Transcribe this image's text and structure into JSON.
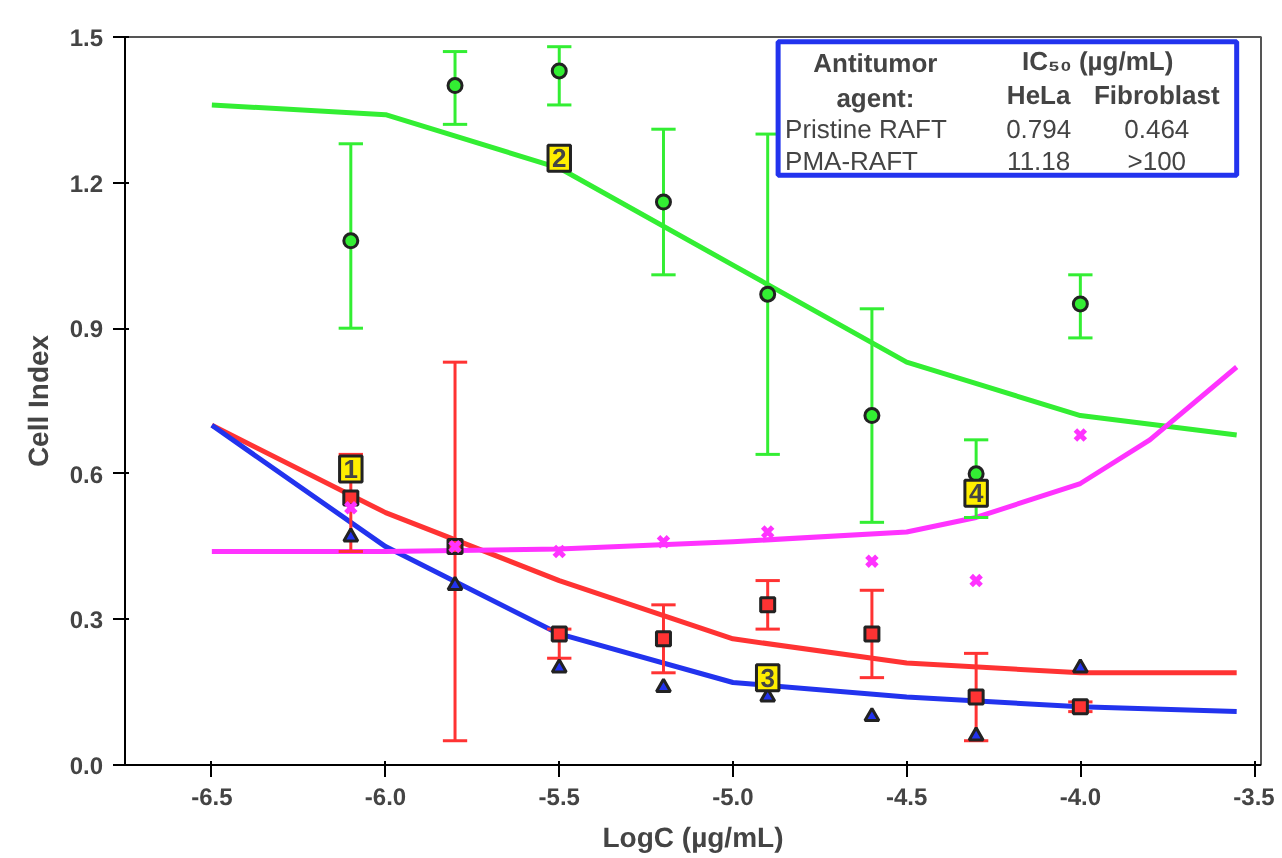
{
  "chart_data": {
    "type": "scatter",
    "xlabel": "LogC (µg/mL)",
    "ylabel": "Cell Index",
    "xlim": [
      -6.75,
      -3.48
    ],
    "ylim": [
      0,
      1.5
    ],
    "xticks": [
      {
        "value": -6.5,
        "label": "-6.5"
      },
      {
        "value": -6,
        "label": "-6.0"
      },
      {
        "value": -5.5,
        "label": "-5.5"
      },
      {
        "value": -5,
        "label": "-5.0"
      },
      {
        "value": -4.5,
        "label": "-4.5"
      },
      {
        "value": -4,
        "label": "-4.0"
      },
      {
        "value": -3.5,
        "label": "-3.5"
      }
    ],
    "yticks": [
      {
        "value": 0,
        "label": "0.0"
      },
      {
        "value": 0.3,
        "label": "0.3"
      },
      {
        "value": 0.6,
        "label": "0.6"
      },
      {
        "value": 0.9,
        "label": "0.9"
      },
      {
        "value": 1.2,
        "label": "1.2"
      },
      {
        "value": 1.5,
        "label": "1.5"
      }
    ],
    "x": [
      -6.1,
      -5.8,
      -5.5,
      -5.2,
      -4.9,
      -4.6,
      -4.3,
      -4.0
    ],
    "series": [
      {
        "type": "line",
        "color": "#33ee33",
        "x": [
          -6.5,
          -6.0,
          -5.5,
          -5.0,
          -4.5,
          -4.0,
          -3.55
        ],
        "values": [
          1.36,
          1.34,
          1.23,
          1.03,
          0.83,
          0.72,
          0.68
        ]
      },
      {
        "type": "line",
        "color": "#ff3333",
        "x": [
          -6.5,
          -6.0,
          -5.5,
          -5.0,
          -4.5,
          -4.0,
          -3.55
        ],
        "values": [
          0.7,
          0.52,
          0.38,
          0.26,
          0.21,
          0.19,
          0.19
        ]
      },
      {
        "type": "line",
        "color": "#2233ee",
        "x": [
          -6.5,
          -6.0,
          -5.5,
          -5.0,
          -4.5,
          -4.0,
          -3.55
        ],
        "values": [
          0.7,
          0.45,
          0.27,
          0.17,
          0.14,
          0.12,
          0.11
        ]
      },
      {
        "type": "line",
        "color": "#ff33ff",
        "x": [
          -6.5,
          -6.0,
          -5.5,
          -5.0,
          -4.5,
          -4.3,
          -4.0,
          -3.8,
          -3.55
        ],
        "values": [
          0.44,
          0.44,
          0.445,
          0.46,
          0.48,
          0.51,
          0.58,
          0.67,
          0.82
        ]
      },
      {
        "marker": "circle",
        "color": "#33ee33",
        "values": [
          1.08,
          1.4,
          1.43,
          1.16,
          0.97,
          0.72,
          0.6,
          0.95
        ],
        "errors": [
          [
            0.9,
            1.28
          ],
          [
            1.32,
            1.47
          ],
          [
            1.36,
            1.48
          ],
          [
            1.01,
            1.31
          ],
          [
            0.64,
            1.3
          ],
          [
            0.5,
            0.94
          ],
          [
            0.51,
            0.67
          ],
          [
            0.88,
            1.01
          ]
        ]
      },
      {
        "marker": "square",
        "color": "#ff3333",
        "values": [
          0.55,
          0.45,
          0.27,
          0.26,
          0.33,
          0.27,
          0.14,
          0.12
        ],
        "errors": [
          [
            0.44,
            0.64
          ],
          [
            0.05,
            0.83
          ],
          [
            0.22,
            0.28
          ],
          [
            0.19,
            0.33
          ],
          [
            0.28,
            0.38
          ],
          [
            0.18,
            0.36
          ],
          [
            0.05,
            0.23
          ],
          [
            0.11,
            0.13
          ]
        ]
      },
      {
        "marker": "triangle",
        "color": "#2233ee",
        "values": [
          0.47,
          0.37,
          0.2,
          0.16,
          0.14,
          0.1,
          0.06,
          0.2
        ]
      },
      {
        "marker": "cross",
        "color": "#ff33ff",
        "values": [
          0.53,
          0.45,
          0.44,
          0.46,
          0.48,
          0.42,
          0.38,
          0.68
        ]
      }
    ],
    "annotations": [
      {
        "text": "1",
        "x": -6.1,
        "y": 0.61
      },
      {
        "text": "2",
        "x": -5.5,
        "y": 1.25
      },
      {
        "text": "3",
        "x": -4.9,
        "y": 0.18
      },
      {
        "text": "4",
        "x": -4.3,
        "y": 0.56
      },
      "Antitumor agent:",
      "IC₅₀ (µg/mL)",
      "HeLa",
      "Fibroblast",
      "Pristine RAFT",
      "0.794",
      "0.464",
      "PMA-RAFT",
      "11.18",
      ">100"
    ]
  }
}
